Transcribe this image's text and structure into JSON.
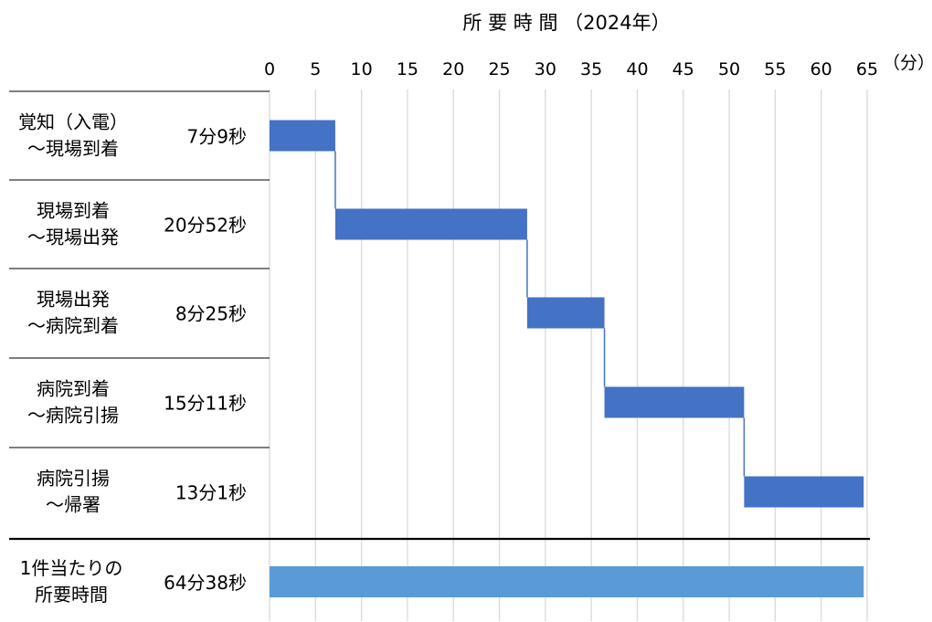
{
  "chart_data": {
    "type": "bar",
    "title": "所 要 時 間 （2024年）",
    "x_unit": "（分）",
    "xlim": [
      0,
      65
    ],
    "x_ticks": [
      "0",
      "5",
      "10",
      "15",
      "20",
      "25",
      "30",
      "35",
      "40",
      "45",
      "50",
      "55",
      "60",
      "65"
    ],
    "grid": true,
    "colors": {
      "stage": "#4472C4",
      "total": "#5B9BD5"
    },
    "stages": [
      {
        "label_lines": [
          "覚知（入電）",
          "～現場到着"
        ],
        "duration_label": "7分9秒",
        "start": 0,
        "end": 7.15
      },
      {
        "label_lines": [
          "現場到着",
          "～現場出発"
        ],
        "duration_label": "20分52秒",
        "start": 7.15,
        "end": 28.02
      },
      {
        "label_lines": [
          "現場出発",
          "～病院到着"
        ],
        "duration_label": "8分25秒",
        "start": 28.02,
        "end": 36.43
      },
      {
        "label_lines": [
          "病院到着",
          "～病院引揚"
        ],
        "duration_label": "15分11秒",
        "start": 36.43,
        "end": 51.62
      },
      {
        "label_lines": [
          "病院引揚",
          "～帰署"
        ],
        "duration_label": "13分1秒",
        "start": 51.62,
        "end": 64.63
      }
    ],
    "total": {
      "label_lines": [
        "1件当たりの",
        "所要時間"
      ],
      "duration_label": "64分38秒",
      "start": 0,
      "end": 64.63
    }
  }
}
